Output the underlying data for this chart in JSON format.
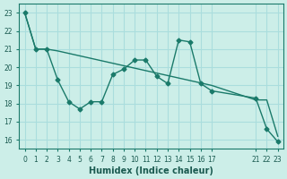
{
  "xlabel": "Humidex (Indice chaleur)",
  "ylabel": "",
  "bg_color": "#cceee8",
  "grid_color": "#aadddd",
  "line_color": "#1a7a6a",
  "xlim": [
    -0.5,
    23.5
  ],
  "ylim": [
    15.5,
    23.5
  ],
  "yticks": [
    16,
    17,
    18,
    19,
    20,
    21,
    22,
    23
  ],
  "xticks": [
    0,
    1,
    2,
    3,
    4,
    5,
    6,
    7,
    8,
    9,
    10,
    11,
    12,
    13,
    14,
    15,
    16,
    17,
    21,
    22,
    23
  ],
  "xtick_labels": [
    "0",
    "1",
    "2",
    "3",
    "4",
    "5",
    "6",
    "7",
    "8",
    "9",
    "10",
    "11",
    "12",
    "13",
    "14",
    "15",
    "16",
    "17",
    "21",
    "22",
    "23"
  ],
  "series1_x": [
    0,
    1,
    2,
    3,
    4,
    5,
    6,
    7,
    8,
    9,
    10,
    11,
    12,
    13,
    14,
    15,
    16,
    17,
    21,
    22,
    23
  ],
  "series1_y": [
    23.0,
    21.0,
    21.0,
    19.3,
    18.1,
    17.7,
    18.1,
    18.1,
    19.6,
    19.9,
    20.4,
    20.4,
    19.5,
    19.1,
    21.5,
    21.4,
    19.1,
    18.7,
    18.3,
    16.6,
    15.9
  ],
  "series2_x": [
    0,
    1,
    2,
    3,
    17,
    21,
    22,
    23
  ],
  "series2_y": [
    23.0,
    21.0,
    21.0,
    20.9,
    19.0,
    18.2,
    18.2,
    16.2
  ],
  "tick_color": "#1a5a50",
  "label_fontsize": 7,
  "tick_fontsize": 5.5
}
